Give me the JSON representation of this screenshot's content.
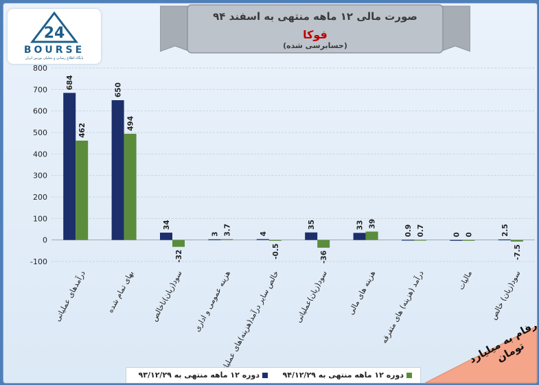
{
  "title": "صورت مالی ۱۲ ماهه منتهی به اسفند ۹۴",
  "company": "فوکا",
  "audit_note": "(حسابرسی شده)",
  "logo": {
    "word": "BOURSE",
    "tagline": "پایگاه اطلاع رسانی و تحلیلی بورس ایران",
    "numeral": "24"
  },
  "units_note": "ارقام به میلیارد تومان",
  "colors": {
    "series1": "#1c2f6b",
    "series2": "#5b8c3c",
    "banner": "#bcc3cb",
    "corner": "#f4a58a"
  },
  "chart_data": {
    "type": "bar",
    "categories": [
      "درآمدهای عملیاتی",
      "بهای تمام شده",
      "سود(زیان)ناخالص",
      "هزینه عمومی و اداری",
      "خالص سایر درآمد(هزینه)های عملیاتی",
      "سود(زیان)عملیاتی",
      "هزینه های مالی",
      "درآمد (هزینه) های متفرقه",
      "مالیات",
      "سود(زیان) خالص"
    ],
    "series": [
      {
        "name": "دوره ۱۲ ماهه منتهی به ۹۳/۱۲/۲۹",
        "values": [
          684,
          650,
          34,
          3,
          4,
          35,
          33,
          0.9,
          0,
          2.5
        ],
        "labels": [
          "684",
          "650",
          "34",
          "3",
          "4",
          "35",
          "33",
          "0.9",
          "0",
          "2.5"
        ]
      },
      {
        "name": "دوره ۱۲ ماهه منتهی به ۹۴/۱۲/۲۹",
        "values": [
          462,
          494,
          -32,
          3.7,
          -0.5,
          -36,
          39,
          0.7,
          0,
          -7.5
        ],
        "labels": [
          "462",
          "494",
          "-32",
          "3.7",
          "-0.5",
          "-36",
          "39",
          "0.7",
          "0",
          "-7.5"
        ]
      }
    ],
    "y_ticks": [
      "-100",
      "0",
      "100",
      "200",
      "300",
      "400",
      "500",
      "600",
      "700",
      "800"
    ],
    "ylim": [
      -100,
      800
    ],
    "grid": true,
    "legend": "bottom"
  }
}
